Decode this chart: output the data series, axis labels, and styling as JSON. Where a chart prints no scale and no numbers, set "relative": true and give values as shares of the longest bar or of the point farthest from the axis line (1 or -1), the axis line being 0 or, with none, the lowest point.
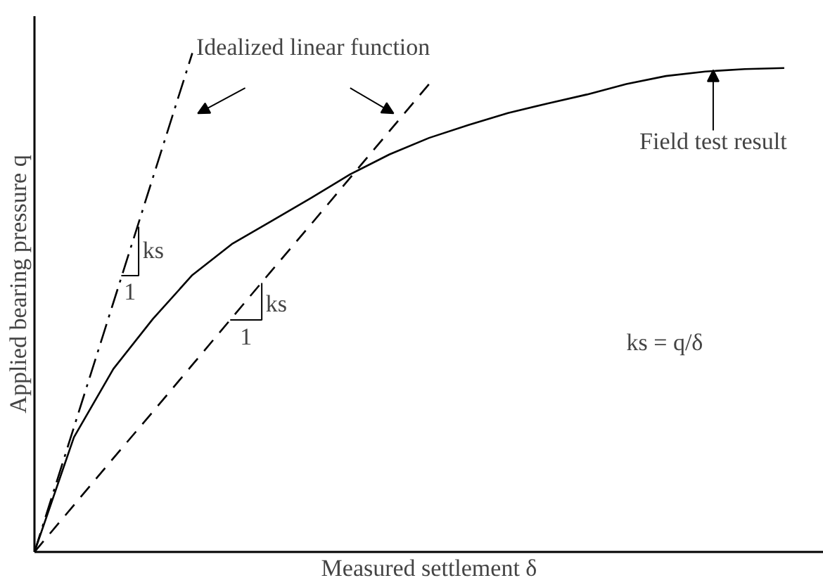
{
  "chart_data": {
    "type": "line",
    "relative": true,
    "xlabel": "Measured settlement δ",
    "ylabel": "Applied bearing pressure q",
    "categories": [
      null,
      null,
      null,
      null,
      null,
      null,
      null,
      null,
      null,
      null,
      null,
      null,
      null,
      null,
      null,
      null,
      null,
      null,
      null,
      null
    ],
    "series": [
      {
        "color": "#000000",
        "line_style": "solid",
        "values": [
          0,
          0.23,
          0.367,
          0.467,
          0.555,
          0.617,
          0.663,
          0.709,
          0.757,
          0.797,
          0.83,
          0.856,
          0.88,
          0.899,
          0.917,
          0.938,
          0.954,
          0.963,
          0.968,
          0.97
        ]
      },
      {
        "color": "#000000",
        "line_style": "dashdot",
        "values": [
          0,
          0.25,
          0.5,
          0.75,
          1,
          null,
          null,
          null,
          null,
          null,
          null,
          null,
          null,
          null,
          null,
          null,
          null,
          null,
          null,
          null
        ]
      },
      {
        "color": "#000000",
        "line_style": "dashed",
        "values": [
          0,
          0.094,
          0.188,
          0.281,
          0.375,
          0.469,
          0.563,
          0.656,
          0.75,
          0.844,
          0.938,
          null,
          null,
          null,
          null,
          null,
          null,
          null,
          null,
          null
        ]
      }
    ],
    "annotations": [
      "Idealized linear function",
      "Field test result",
      "ks = q/δ",
      "ks",
      "1",
      "ks",
      "1"
    ]
  }
}
